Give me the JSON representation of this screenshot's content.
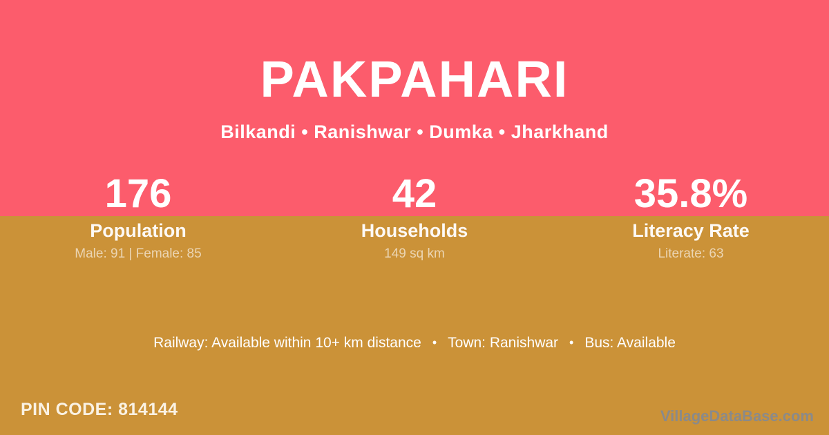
{
  "colors": {
    "top_bg": "#fc5c6c",
    "bottom_bg": "#cb9238",
    "text": "#ffffff",
    "label_text": "rgba(255,255,255,0.95)",
    "detail_text": "rgba(255,255,255,0.62)",
    "watermark_text": "#8a8a8a"
  },
  "header": {
    "title": "PAKPAHARI",
    "subtitle": "Bilkandi • Ranishwar • Dumka • Jharkhand"
  },
  "stats": [
    {
      "value": "176",
      "label": "Population",
      "detail": "Male: 91 | Female: 85"
    },
    {
      "value": "42",
      "label": "Households",
      "detail": "149 sq km"
    },
    {
      "value": "35.8%",
      "label": "Literacy Rate",
      "detail": "Literate: 63"
    }
  ],
  "amenities": {
    "separator": "•",
    "items": [
      "Railway: Available within 10+ km distance",
      "Town: Ranishwar",
      "Bus: Available"
    ]
  },
  "footer": {
    "pin_code": "PIN CODE: 814144",
    "watermark": "VillageDataBase.com"
  }
}
